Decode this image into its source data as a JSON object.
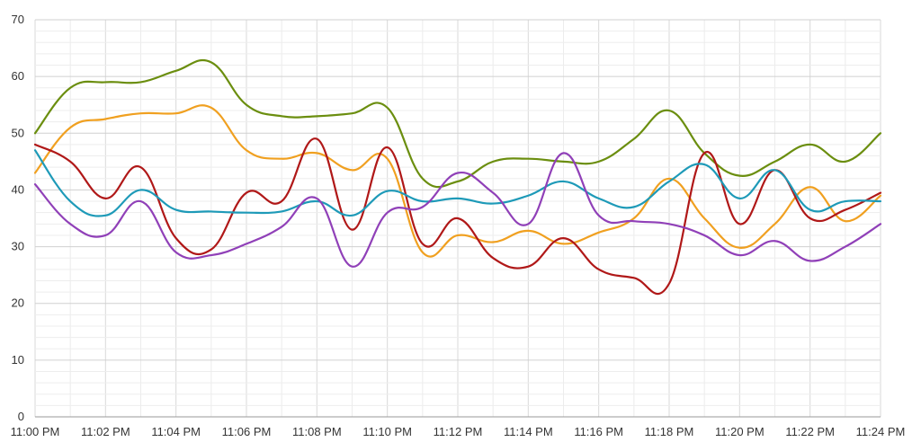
{
  "chart_data": {
    "type": "line",
    "title": "",
    "xlabel": "",
    "ylabel": "",
    "ylim": [
      0,
      70
    ],
    "yticks": [
      0,
      10,
      20,
      30,
      40,
      50,
      60,
      70
    ],
    "grid": true,
    "legend": "none",
    "x": [
      "11:00 PM",
      "11:01 PM",
      "11:02 PM",
      "11:03 PM",
      "11:04 PM",
      "11:05 PM",
      "11:06 PM",
      "11:07 PM",
      "11:08 PM",
      "11:09 PM",
      "11:10 PM",
      "11:11 PM",
      "11:12 PM",
      "11:13 PM",
      "11:14 PM",
      "11:15 PM",
      "11:16 PM",
      "11:17 PM",
      "11:18 PM",
      "11:19 PM",
      "11:20 PM",
      "11:21 PM",
      "11:22 PM",
      "11:23 PM",
      "11:24 PM"
    ],
    "xtick_labels": [
      "11:00 PM",
      "11:02 PM",
      "11:04 PM",
      "11:06 PM",
      "11:08 PM",
      "11:10 PM",
      "11:12 PM",
      "11:14 PM",
      "11:16 PM",
      "11:18 PM",
      "11:20 PM",
      "11:22 PM",
      "11:24 PM"
    ],
    "series": [
      {
        "color": "#6b8e0f",
        "values": [
          50,
          58,
          59,
          59,
          61,
          62.5,
          55,
          53,
          53,
          53.5,
          54.5,
          42,
          41.5,
          45,
          45.5,
          45,
          45,
          49,
          54,
          46.5,
          42.5,
          45,
          48,
          45,
          50
        ]
      },
      {
        "color": "#f0a020",
        "values": [
          43,
          51,
          52.5,
          53.5,
          53.5,
          54.5,
          47,
          45.5,
          46.5,
          43.5,
          45.5,
          29,
          32,
          30.8,
          32.8,
          30.5,
          32.5,
          35,
          42,
          35,
          29.8,
          34,
          40.5,
          34.5,
          39
        ]
      },
      {
        "color": "#b01818",
        "values": [
          48,
          45,
          38.5,
          44,
          31.5,
          29.5,
          39.5,
          38,
          49,
          33,
          47.5,
          30.5,
          35,
          28,
          26.5,
          31.5,
          26,
          24.5,
          23.5,
          46.5,
          34,
          43.5,
          35,
          36.5,
          39.5
        ]
      },
      {
        "color": "#1e9ab8",
        "values": [
          47,
          38,
          35.5,
          40,
          36.5,
          36.2,
          36,
          36.2,
          38,
          35.5,
          39.8,
          38,
          38.5,
          37.6,
          39,
          41.5,
          38.5,
          37,
          41.5,
          44.5,
          38.5,
          43.5,
          36.5,
          38,
          38
        ]
      },
      {
        "color": "#9040b8",
        "values": [
          41,
          34,
          32,
          38,
          29,
          28.5,
          30.5,
          33.5,
          38.5,
          26.5,
          36,
          37,
          43,
          39.5,
          34,
          46.5,
          35.5,
          34.5,
          34,
          32,
          28.5,
          31,
          27.5,
          30,
          34
        ]
      }
    ]
  }
}
